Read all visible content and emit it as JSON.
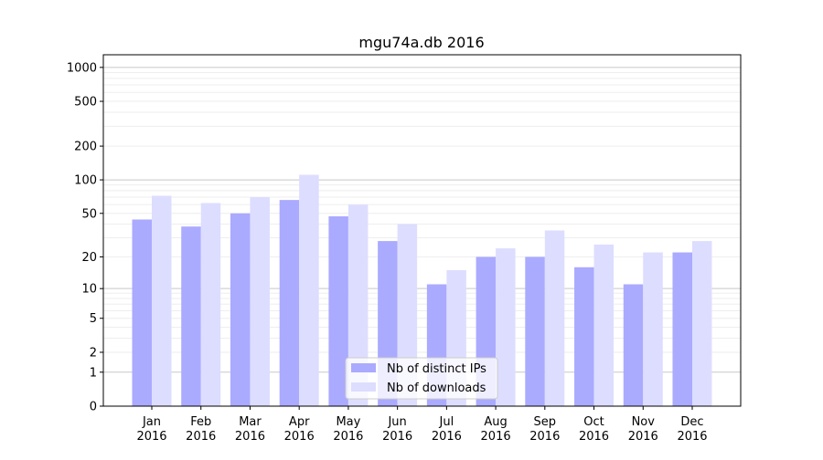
{
  "chart_data": {
    "type": "bar",
    "title": "mgu74a.db 2016",
    "xlabel": "",
    "ylabel": "",
    "yscale": "log(1+x)",
    "ylim": [
      0,
      1270
    ],
    "yticks": [
      0,
      1,
      2,
      5,
      10,
      20,
      50,
      100,
      200,
      500,
      1000
    ],
    "ytick_labels": [
      "0",
      "1",
      "2",
      "5",
      "10",
      "20",
      "50",
      "100",
      "200",
      "500",
      "1000"
    ],
    "categories": [
      [
        "Jan",
        "2016"
      ],
      [
        "Feb",
        "2016"
      ],
      [
        "Mar",
        "2016"
      ],
      [
        "Apr",
        "2016"
      ],
      [
        "May",
        "2016"
      ],
      [
        "Jun",
        "2016"
      ],
      [
        "Jul",
        "2016"
      ],
      [
        "Aug",
        "2016"
      ],
      [
        "Sep",
        "2016"
      ],
      [
        "Oct",
        "2016"
      ],
      [
        "Nov",
        "2016"
      ],
      [
        "Dec",
        "2016"
      ]
    ],
    "series": [
      {
        "name": "Nb of distinct IPs",
        "color": "#aaaaff",
        "values": [
          44,
          38,
          50,
          66,
          47,
          28,
          11,
          20,
          20,
          16,
          11,
          22
        ]
      },
      {
        "name": "Nb of downloads",
        "color": "#ddddff",
        "values": [
          72,
          62,
          70,
          111,
          60,
          40,
          15,
          24,
          35,
          26,
          22,
          28
        ]
      }
    ],
    "grid": true,
    "legend_position": "lower-center"
  }
}
